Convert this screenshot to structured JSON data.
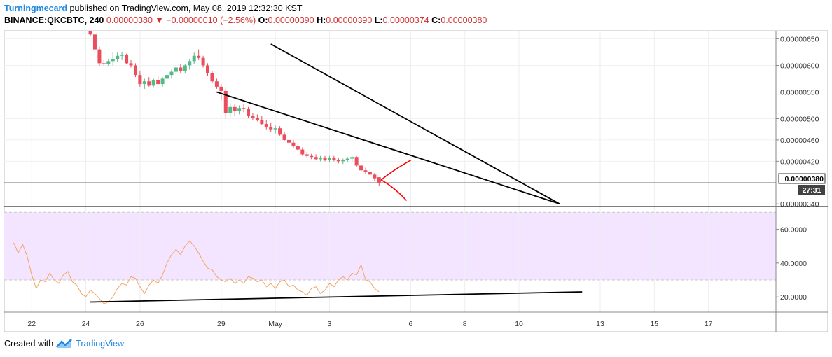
{
  "header": {
    "author": "Turningmecard",
    "published_text": " published on TradingView.com, May 08, 2019 12:32:30 KST",
    "symbol": "BINANCE:QKCBTC, 240",
    "last": "0.00000380",
    "arrow": "▼",
    "change": "−0.00000010 (−2.56%)",
    "o_label": "O:",
    "o_value": "0.00000390",
    "h_label": "H:",
    "h_value": "0.00000390",
    "l_label": "L:",
    "l_value": "0.00000374",
    "c_label": "C:",
    "c_value": "0.00000380"
  },
  "footer": {
    "created_with": "Created with",
    "brand": "TradingView"
  },
  "colors": {
    "up": "#53b987",
    "down": "#eb4d5c",
    "rsi": "#f4a460",
    "rsi_band": "#f3e5ff",
    "trendline": "#000000",
    "annotation": "#ff0000"
  },
  "chart_data": {
    "type": "candlestick",
    "price_axis": {
      "ticks": [
        "0.00000650",
        "0.00000600",
        "0.00000550",
        "0.00000500",
        "0.00000460",
        "0.00000420",
        "0.00000340"
      ],
      "tick_values": [
        650,
        600,
        550,
        500,
        460,
        420,
        340
      ],
      "units": "1e-8 BTC",
      "range": [
        335,
        665
      ]
    },
    "current_price": {
      "label": "0.00000380",
      "value": 380,
      "countdown": "27:31"
    },
    "x_axis": {
      "range": [
        0,
        130
      ],
      "ticks": [
        {
          "label": "22",
          "t": 4
        },
        {
          "label": "24",
          "t": 16
        },
        {
          "label": "26",
          "t": 28
        },
        {
          "label": "29",
          "t": 46
        },
        {
          "label": "May",
          "t": 58
        },
        {
          "label": "3",
          "t": 70
        },
        {
          "label": "6",
          "t": 88
        },
        {
          "label": "8",
          "t": 100
        },
        {
          "label": "10",
          "t": 112
        },
        {
          "label": "13",
          "t": 130
        },
        {
          "label": "15",
          "t": 142
        },
        {
          "label": "17",
          "t": 154
        }
      ]
    },
    "candles": [
      [
        17,
        664,
        666,
        655,
        658
      ],
      [
        18,
        658,
        660,
        622,
        630
      ],
      [
        19,
        630,
        635,
        598,
        604
      ],
      [
        20,
        604,
        610,
        598,
        602
      ],
      [
        21,
        602,
        612,
        598,
        608
      ],
      [
        22,
        608,
        625,
        600,
        612
      ],
      [
        23,
        612,
        624,
        606,
        618
      ],
      [
        24,
        618,
        625,
        610,
        620
      ],
      [
        25,
        620,
        622,
        602,
        604
      ],
      [
        26,
        604,
        610,
        596,
        600
      ],
      [
        27,
        600,
        604,
        578,
        582
      ],
      [
        28,
        582,
        590,
        560,
        565
      ],
      [
        29,
        565,
        575,
        556,
        570
      ],
      [
        30,
        570,
        578,
        560,
        562
      ],
      [
        31,
        562,
        575,
        558,
        572
      ],
      [
        32,
        572,
        580,
        562,
        565
      ],
      [
        33,
        565,
        578,
        560,
        575
      ],
      [
        34,
        575,
        585,
        568,
        582
      ],
      [
        35,
        582,
        592,
        575,
        588
      ],
      [
        36,
        588,
        600,
        582,
        596
      ],
      [
        37,
        596,
        602,
        586,
        590
      ],
      [
        38,
        590,
        602,
        585,
        600
      ],
      [
        39,
        600,
        612,
        592,
        608
      ],
      [
        40,
        608,
        624,
        602,
        618
      ],
      [
        41,
        618,
        630,
        610,
        614
      ],
      [
        42,
        614,
        618,
        596,
        600
      ],
      [
        43,
        600,
        604,
        580,
        585
      ],
      [
        44,
        585,
        590,
        566,
        570
      ],
      [
        45,
        570,
        575,
        556,
        560
      ],
      [
        46,
        560,
        565,
        535,
        552
      ],
      [
        47,
        552,
        558,
        500,
        510
      ],
      [
        48,
        510,
        530,
        504,
        522
      ],
      [
        49,
        522,
        528,
        505,
        515
      ],
      [
        50,
        515,
        525,
        508,
        520
      ],
      [
        51,
        520,
        528,
        512,
        518
      ],
      [
        52,
        518,
        522,
        502,
        505
      ],
      [
        53,
        505,
        510,
        498,
        502
      ],
      [
        54,
        502,
        508,
        495,
        498
      ],
      [
        55,
        498,
        505,
        488,
        490
      ],
      [
        56,
        490,
        498,
        480,
        485
      ],
      [
        57,
        485,
        492,
        475,
        480
      ],
      [
        58,
        480,
        488,
        472,
        482
      ],
      [
        59,
        482,
        486,
        468,
        470
      ],
      [
        60,
        470,
        475,
        458,
        460
      ],
      [
        61,
        460,
        465,
        450,
        455
      ],
      [
        62,
        455,
        460,
        445,
        448
      ],
      [
        63,
        448,
        452,
        438,
        442
      ],
      [
        64,
        442,
        446,
        430,
        433
      ],
      [
        65,
        433,
        438,
        426,
        430
      ],
      [
        66,
        430,
        434,
        424,
        428
      ],
      [
        67,
        428,
        433,
        422,
        424
      ],
      [
        68,
        424,
        430,
        420,
        426
      ],
      [
        69,
        426,
        430,
        420,
        423
      ],
      [
        70,
        423,
        430,
        418,
        426
      ],
      [
        71,
        426,
        430,
        420,
        422
      ],
      [
        72,
        422,
        427,
        416,
        420
      ],
      [
        73,
        420,
        425,
        415,
        423
      ],
      [
        74,
        423,
        428,
        418,
        425
      ],
      [
        75,
        425,
        430,
        418,
        428
      ],
      [
        76,
        428,
        430,
        410,
        412
      ],
      [
        77,
        412,
        415,
        400,
        403
      ],
      [
        78,
        403,
        408,
        396,
        400
      ],
      [
        79,
        400,
        404,
        392,
        395
      ],
      [
        80,
        395,
        398,
        383,
        388
      ],
      [
        81,
        390,
        390,
        374,
        380
      ]
    ],
    "rsi": {
      "ticks": [
        "60.0000",
        "40.0000",
        "20.0000"
      ],
      "tick_values": [
        60,
        40,
        20
      ],
      "range": [
        11,
        73
      ],
      "band": [
        30,
        70
      ],
      "x": [
        0,
        1,
        2,
        3,
        4,
        5,
        6,
        7,
        8,
        9,
        10,
        11,
        12,
        13,
        14,
        15,
        16,
        17,
        18,
        19,
        20,
        21,
        22,
        23,
        24,
        25,
        26,
        27,
        28,
        29,
        30,
        31,
        32,
        33,
        34,
        35,
        36,
        37,
        38,
        39,
        40,
        41,
        42,
        43,
        44,
        45,
        46,
        47,
        48,
        49,
        50,
        51,
        52,
        53,
        54,
        55,
        56,
        57,
        58,
        59,
        60,
        61,
        62,
        63,
        64,
        65,
        66,
        67,
        68,
        69,
        70,
        71,
        72,
        73,
        74,
        75,
        76,
        77,
        78,
        79,
        80,
        81
      ],
      "values": [
        52,
        46,
        51,
        44,
        33,
        25,
        30,
        29,
        34,
        30,
        28,
        33,
        35,
        29,
        27,
        22,
        20,
        24,
        22,
        19,
        16,
        17,
        20,
        25,
        28,
        27,
        32,
        31,
        26,
        22,
        27,
        30,
        28,
        33,
        40,
        45,
        48,
        45,
        50,
        53,
        50,
        46,
        41,
        37,
        36,
        32,
        30,
        29,
        31,
        28,
        30,
        28,
        32,
        31,
        29,
        30,
        26,
        28,
        25,
        29,
        30,
        26,
        27,
        24,
        23,
        21,
        25,
        26,
        22,
        24,
        28,
        26,
        30,
        32,
        30,
        34,
        33,
        39,
        30,
        29,
        25,
        23
      ]
    },
    "trendlines": [
      {
        "from": [
          57,
          640
        ],
        "to": [
          121,
          340
        ]
      },
      {
        "from": [
          45,
          550
        ],
        "to": [
          121,
          340
        ]
      },
      {
        "from": [
          17,
          17
        ],
        "to": [
          126,
          23
        ]
      }
    ],
    "annotation": {
      "type": "hand-drawn arrows",
      "up": [
        [
          81.5,
          385
        ],
        [
          83.5,
          400
        ],
        [
          88,
          422
        ]
      ],
      "down": [
        [
          81.5,
          385
        ],
        [
          84.5,
          370
        ],
        [
          87,
          347
        ]
      ]
    }
  }
}
